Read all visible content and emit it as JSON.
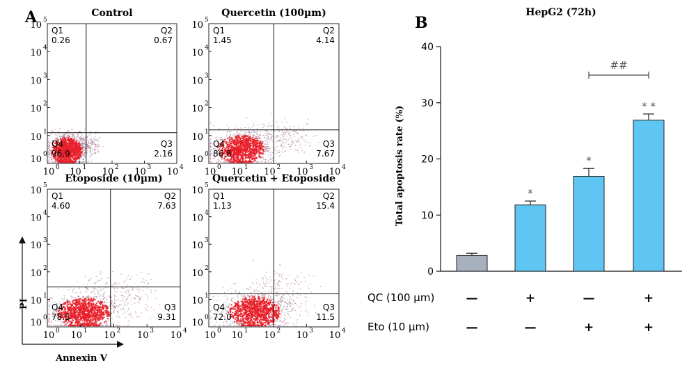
{
  "panel_a": {
    "letter": "A",
    "x_axis_title": "Annexin V",
    "y_axis_title": "PI"
  },
  "panel_b": {
    "letter": "B"
  },
  "chart_data": [
    {
      "type": "scatter",
      "title": "Control",
      "quadrants": [
        {
          "name": "Q1",
          "value": "0.26"
        },
        {
          "name": "Q2",
          "value": "0.67"
        },
        {
          "name": "Q3",
          "value": "2.16"
        },
        {
          "name": "Q4",
          "value": "96.9"
        }
      ],
      "x_ticks": [
        {
          "base": "10",
          "exp": "0"
        },
        {
          "base": "10",
          "exp": "1"
        },
        {
          "base": "10",
          "exp": "2"
        },
        {
          "base": "10",
          "exp": "3"
        },
        {
          "base": "10",
          "exp": "4"
        }
      ],
      "y_ticks": [
        {
          "base": "10",
          "exp": "0"
        },
        {
          "base": "10",
          "exp": "1"
        },
        {
          "base": "10",
          "exp": "2"
        },
        {
          "base": "10",
          "exp": "3"
        },
        {
          "base": "10",
          "exp": "4"
        },
        {
          "base": "10",
          "exp": "5"
        }
      ],
      "gate": {
        "x": 1.2,
        "y": 1.1
      },
      "cloud": {
        "x_center": 0.6,
        "y_center": 0.45,
        "x_spread": 0.3,
        "y_spread": 0.3,
        "tail_x": 1.5,
        "tail_y": 1.1
      }
    },
    {
      "type": "scatter",
      "title": "Quercetin (100µm)",
      "quadrants": [
        {
          "name": "Q1",
          "value": "1.45"
        },
        {
          "name": "Q2",
          "value": "4.14"
        },
        {
          "name": "Q3",
          "value": "7.67"
        },
        {
          "name": "Q4",
          "value": "86.8"
        }
      ],
      "x_ticks": [
        {
          "base": "10",
          "exp": "0"
        },
        {
          "base": "10",
          "exp": "1"
        },
        {
          "base": "10",
          "exp": "2"
        },
        {
          "base": "10",
          "exp": "3"
        },
        {
          "base": "10",
          "exp": "4"
        }
      ],
      "y_ticks": [
        {
          "base": "10",
          "exp": "0"
        },
        {
          "base": "10",
          "exp": "1"
        },
        {
          "base": "10",
          "exp": "2"
        },
        {
          "base": "10",
          "exp": "3"
        },
        {
          "base": "10",
          "exp": "4"
        },
        {
          "base": "10",
          "exp": "5"
        }
      ],
      "gate": {
        "x": 2.0,
        "y": 1.2
      },
      "cloud": {
        "x_center": 1.0,
        "y_center": 0.5,
        "x_spread": 0.45,
        "y_spread": 0.32,
        "tail_x": 3.0,
        "tail_y": 1.6
      }
    },
    {
      "type": "scatter",
      "title": "Etoposide (10µm)",
      "quadrants": [
        {
          "name": "Q1",
          "value": "4.60"
        },
        {
          "name": "Q2",
          "value": "7.63"
        },
        {
          "name": "Q3",
          "value": "9.31"
        },
        {
          "name": "Q4",
          "value": "78.5"
        }
      ],
      "x_ticks": [
        {
          "base": "10",
          "exp": "0"
        },
        {
          "base": "10",
          "exp": "1"
        },
        {
          "base": "10",
          "exp": "2"
        },
        {
          "base": "10",
          "exp": "3"
        },
        {
          "base": "10",
          "exp": "4"
        }
      ],
      "y_ticks": [
        {
          "base": "10",
          "exp": "0"
        },
        {
          "base": "10",
          "exp": "1"
        },
        {
          "base": "10",
          "exp": "2"
        },
        {
          "base": "10",
          "exp": "3"
        },
        {
          "base": "10",
          "exp": "4"
        },
        {
          "base": "10",
          "exp": "5"
        }
      ],
      "gate": {
        "x": 1.9,
        "y": 1.45
      },
      "cloud": {
        "x_center": 1.1,
        "y_center": 0.5,
        "x_spread": 0.5,
        "y_spread": 0.35,
        "tail_x": 3.1,
        "tail_y": 2.2
      }
    },
    {
      "type": "scatter",
      "title": "Quercetin + Etoposide",
      "quadrants": [
        {
          "name": "Q1",
          "value": "1.13"
        },
        {
          "name": "Q2",
          "value": "15.4"
        },
        {
          "name": "Q3",
          "value": "11.5"
        },
        {
          "name": "Q4",
          "value": "72.0"
        }
      ],
      "x_ticks": [
        {
          "base": "10",
          "exp": "0"
        },
        {
          "base": "10",
          "exp": "1"
        },
        {
          "base": "10",
          "exp": "2"
        },
        {
          "base": "10",
          "exp": "3"
        },
        {
          "base": "10",
          "exp": "4"
        }
      ],
      "y_ticks": [
        {
          "base": "10",
          "exp": "0"
        },
        {
          "base": "10",
          "exp": "1"
        },
        {
          "base": "10",
          "exp": "2"
        },
        {
          "base": "10",
          "exp": "3"
        },
        {
          "base": "10",
          "exp": "4"
        },
        {
          "base": "10",
          "exp": "5"
        }
      ],
      "gate": {
        "x": 2.0,
        "y": 1.2
      },
      "cloud": {
        "x_center": 1.4,
        "y_center": 0.55,
        "x_spread": 0.5,
        "y_spread": 0.35,
        "tail_x": 3.1,
        "tail_y": 2.4
      }
    },
    {
      "type": "bar",
      "title": "HepG2 (72h)",
      "ylabel": "Total apoptosis rate (%)",
      "ylim": [
        0,
        40
      ],
      "y_ticks": [
        "0",
        "10",
        "20",
        "30",
        "40"
      ],
      "values": [
        2.8,
        11.8,
        16.9,
        26.9
      ],
      "errors": [
        0.4,
        0.7,
        1.4,
        1.1
      ],
      "colors": [
        "#a6b1bd",
        "#5fc6f4",
        "#5fc6f4",
        "#5fc6f4"
      ],
      "bar_marks": [
        "",
        "*",
        "*",
        "**"
      ],
      "bracket": {
        "from": 2,
        "to": 3,
        "label": "##"
      },
      "conditions": [
        {
          "label": "QC (100 µm)",
          "marks": [
            "—",
            "+",
            "—",
            "+"
          ]
        },
        {
          "label": "Eto (10 µm)",
          "marks": [
            "—",
            "—",
            "+",
            "+"
          ]
        }
      ]
    }
  ]
}
